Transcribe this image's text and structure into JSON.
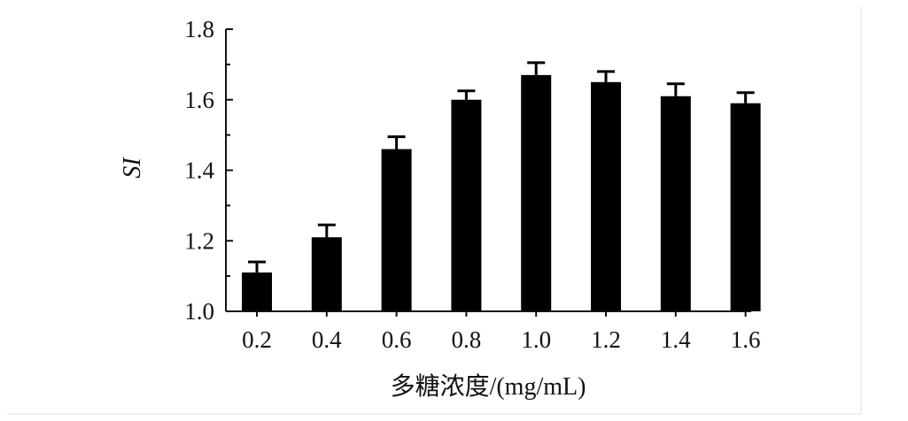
{
  "chart_data": {
    "type": "bar",
    "title": "",
    "xlabel": "多糖浓度/(mg/mL)",
    "ylabel": "SI",
    "categories": [
      "0.2",
      "0.4",
      "0.6",
      "0.8",
      "1.0",
      "1.2",
      "1.4",
      "1.6"
    ],
    "values": [
      1.11,
      1.21,
      1.46,
      1.6,
      1.67,
      1.65,
      1.61,
      1.59
    ],
    "errors": [
      0.03,
      0.035,
      0.035,
      0.025,
      0.035,
      0.03,
      0.035,
      0.03
    ],
    "ylim": [
      1.0,
      1.8
    ],
    "yticks": [
      "1.0",
      "1.2",
      "1.4",
      "1.6",
      "1.8"
    ],
    "grid": false,
    "legend": "none",
    "bar_color": "#000000",
    "axis_color": "#111111",
    "background": "#ffffff"
  }
}
